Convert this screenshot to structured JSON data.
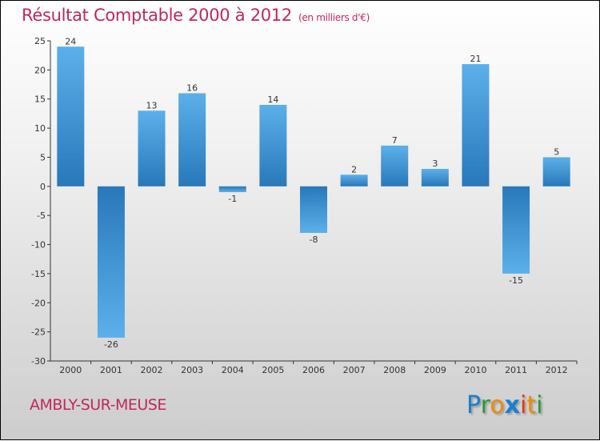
{
  "title": "Résultat Comptable 2000 à 2012",
  "subtitle": "(en milliers d'€)",
  "town": "AMBLY-SUR-MEUSE",
  "logo": {
    "letters": [
      "P",
      "r",
      "o",
      "x",
      "i",
      "t",
      "i"
    ],
    "colors": [
      "#1a7fd0",
      "#2a9a3a",
      "#f08a00",
      "#1a7fd0",
      "#e03a10",
      "#f08a00",
      "#2a9a3a"
    ]
  },
  "chart_data": {
    "type": "bar",
    "title": "Résultat Comptable 2000 à 2012",
    "ylabel": "en milliers d'€",
    "categories": [
      "2000",
      "2001",
      "2002",
      "2003",
      "2004",
      "2005",
      "2006",
      "2007",
      "2008",
      "2009",
      "2010",
      "2011",
      "2012"
    ],
    "values": [
      24,
      -26,
      13,
      16,
      -1,
      14,
      -8,
      2,
      7,
      3,
      21,
      -15,
      5
    ],
    "ylim": [
      -30,
      25
    ],
    "yticks": [
      25,
      20,
      15,
      10,
      5,
      0,
      -5,
      -10,
      -15,
      -20,
      -25,
      -30
    ],
    "colors": {
      "light": "#5cb0ea",
      "dark": "#2878ba"
    }
  }
}
